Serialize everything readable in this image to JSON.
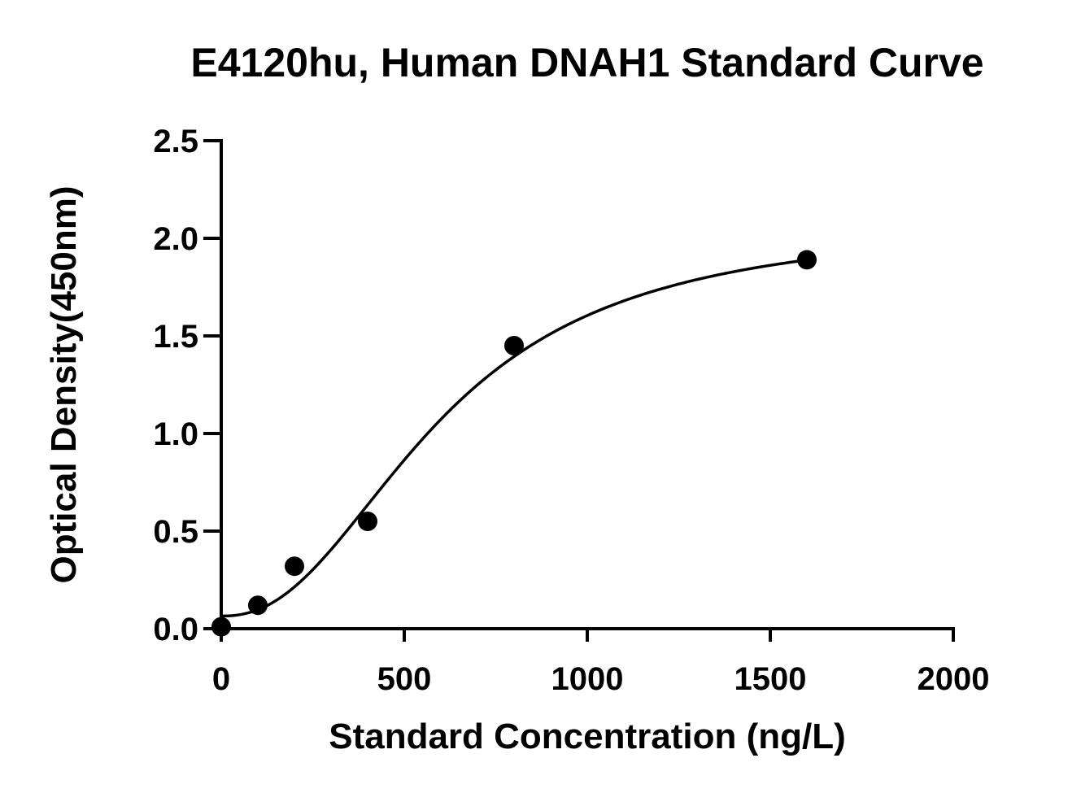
{
  "chart_data": {
    "type": "scatter",
    "title": "E4120hu, Human DNAH1 Standard Curve",
    "xlabel": "Standard Concentration (ng/L)",
    "ylabel": "Optical Density(450nm)",
    "xlim": [
      0,
      2000
    ],
    "ylim": [
      0,
      2.5
    ],
    "x_ticks": [
      "0",
      "500",
      "1000",
      "1500",
      "2000"
    ],
    "y_ticks": [
      "0.0",
      "0.5",
      "1.0",
      "1.5",
      "2.0",
      "2.5"
    ],
    "x_tick_values": [
      0,
      500,
      1000,
      1500,
      2000
    ],
    "y_tick_values": [
      0,
      0.5,
      1.0,
      1.5,
      2.0,
      2.5
    ],
    "grid": false,
    "legend": "none",
    "series": [
      {
        "x": [
          0,
          100,
          200,
          400,
          800,
          1600
        ],
        "y": [
          0.01,
          0.12,
          0.32,
          0.55,
          1.45,
          1.89
        ]
      }
    ],
    "fit": {
      "model": "4PL",
      "a": 0.065,
      "b": 2.3,
      "c": 600,
      "d": 2.08
    }
  }
}
